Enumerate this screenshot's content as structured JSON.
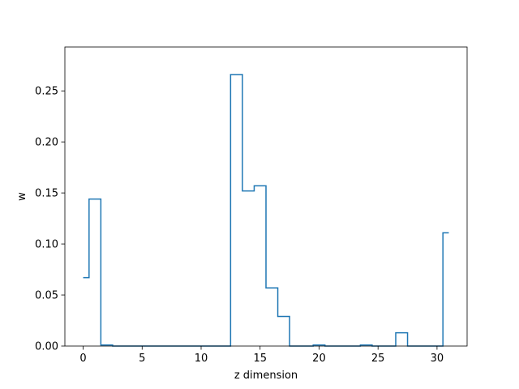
{
  "chart_data": {
    "type": "line",
    "style": "step",
    "xlabel": "z dimension",
    "ylabel": "w",
    "xlim": [
      -1.55,
      32.55
    ],
    "ylim": [
      0,
      0.293
    ],
    "xticks": [
      0,
      5,
      10,
      15,
      20,
      25,
      30
    ],
    "yticks": [
      0.0,
      0.05,
      0.1,
      0.15,
      0.2,
      0.25
    ],
    "xtick_labels": [
      "0",
      "5",
      "10",
      "15",
      "20",
      "25",
      "30"
    ],
    "ytick_labels": [
      "0.00",
      "0.05",
      "0.10",
      "0.15",
      "0.20",
      "0.25"
    ],
    "grid": false,
    "series": [
      {
        "color": "#1f77b4",
        "x": [
          0,
          1,
          2,
          3,
          4,
          5,
          6,
          7,
          8,
          9,
          10,
          11,
          12,
          13,
          14,
          15,
          16,
          17,
          18,
          19,
          20,
          21,
          22,
          23,
          24,
          25,
          26,
          27,
          28,
          29,
          30,
          31
        ],
        "values": [
          0.067,
          0.144,
          0.001,
          0.0,
          0.0,
          0.0,
          0.0,
          0.0,
          0.0,
          0.0,
          0.0,
          0.0,
          0.0,
          0.266,
          0.152,
          0.157,
          0.057,
          0.029,
          0.0,
          0.0,
          0.001,
          0.0,
          0.0,
          0.0,
          0.001,
          0.0,
          0.0,
          0.013,
          0.0,
          0.0,
          0.0,
          0.111
        ]
      }
    ]
  }
}
